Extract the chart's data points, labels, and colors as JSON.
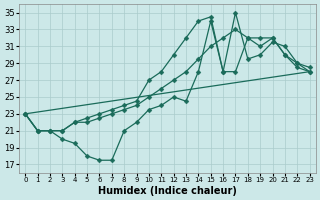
{
  "xlabel": "Humidex (Indice chaleur)",
  "bg_color": "#cce8e8",
  "grid_color": "#aacccc",
  "line_color": "#1a6b5a",
  "xlim": [
    -0.5,
    23.5
  ],
  "ylim": [
    16,
    36
  ],
  "xticks": [
    0,
    1,
    2,
    3,
    4,
    5,
    6,
    7,
    8,
    9,
    10,
    11,
    12,
    13,
    14,
    15,
    16,
    17,
    18,
    19,
    20,
    21,
    22,
    23
  ],
  "yticks": [
    17,
    19,
    21,
    23,
    25,
    27,
    29,
    31,
    33,
    35
  ],
  "series1_x": [
    0,
    1,
    2,
    3,
    4,
    5,
    6,
    7,
    8,
    9,
    10,
    11,
    12,
    13,
    14,
    15,
    16,
    17,
    18,
    19,
    20,
    21,
    22,
    23
  ],
  "series1_y": [
    23,
    21,
    21,
    20,
    19.5,
    18,
    17.5,
    17.5,
    21,
    22,
    23.5,
    24,
    25,
    24.5,
    28,
    34,
    28,
    28,
    32,
    31,
    32,
    30,
    29,
    28
  ],
  "series2_x": [
    0,
    1,
    2,
    3,
    4,
    5,
    6,
    7,
    8,
    9,
    10,
    11,
    12,
    13,
    14,
    15,
    16,
    17,
    18,
    19,
    20,
    21,
    22,
    23
  ],
  "series2_y": [
    23,
    21,
    21,
    21,
    22,
    22.5,
    23,
    23.5,
    24,
    24.5,
    27,
    28,
    30,
    32,
    34,
    34.5,
    28,
    35,
    29.5,
    30,
    31.5,
    31,
    29,
    28.5
  ],
  "series3_x": [
    0,
    1,
    2,
    3,
    4,
    5,
    6,
    7,
    8,
    9,
    10,
    11,
    12,
    13,
    14,
    15,
    16,
    17,
    18,
    19,
    20,
    21,
    22,
    23
  ],
  "series3_y": [
    23,
    21,
    21,
    21,
    22,
    22,
    22.5,
    23,
    23.5,
    24,
    25,
    26,
    27,
    28,
    29.5,
    31,
    32,
    33,
    32,
    32,
    32,
    30,
    28.5,
    28
  ],
  "series4_x": [
    0,
    23
  ],
  "series4_y": [
    23,
    28
  ],
  "marker_size": 2.5,
  "linewidth": 0.9
}
